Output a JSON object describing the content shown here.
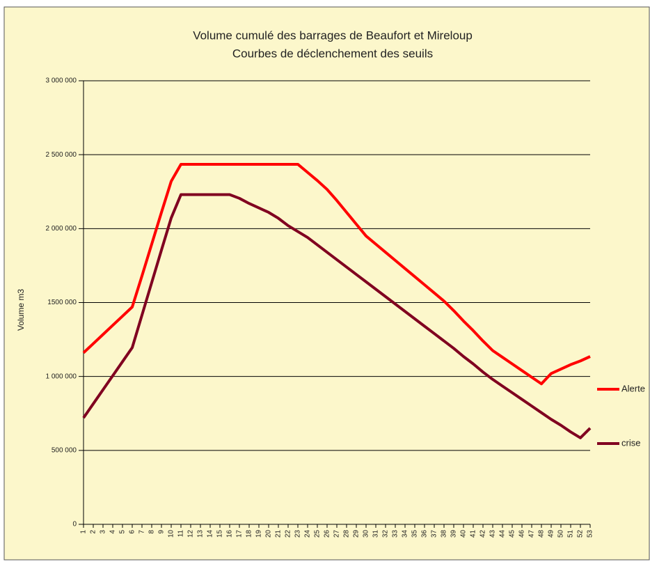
{
  "chart_data": {
    "type": "line",
    "title": "Volume cumulé des barrages de Beaufort et Mireloup",
    "subtitle": "Courbes de déclenchement des seuils",
    "y_label": "Volume m3",
    "categories": [
      1,
      2,
      3,
      4,
      5,
      6,
      7,
      8,
      9,
      10,
      11,
      12,
      13,
      14,
      15,
      16,
      17,
      18,
      19,
      20,
      21,
      22,
      23,
      24,
      25,
      26,
      27,
      28,
      29,
      30,
      31,
      32,
      33,
      34,
      35,
      36,
      37,
      38,
      39,
      40,
      41,
      42,
      43,
      44,
      45,
      46,
      47,
      48,
      49,
      50,
      51,
      52,
      53
    ],
    "series": [
      {
        "name": "Alerte",
        "color": "#ff0000",
        "values": [
          1160000,
          1222000,
          1284000,
          1346000,
          1408000,
          1470000,
          1680000,
          1895000,
          2110000,
          2320000,
          2435000,
          2435000,
          2435000,
          2435000,
          2435000,
          2435000,
          2435000,
          2435000,
          2435000,
          2435000,
          2435000,
          2435000,
          2435000,
          2380000,
          2325000,
          2265000,
          2190000,
          2110000,
          2030000,
          1950000,
          1895000,
          1840000,
          1785000,
          1730000,
          1675000,
          1620000,
          1565000,
          1510000,
          1445000,
          1375000,
          1310000,
          1240000,
          1175000,
          1130000,
          1085000,
          1040000,
          995000,
          950000,
          1020000,
          1050000,
          1080000,
          1105000,
          1135000
        ]
      },
      {
        "name": "crise",
        "color": "#800020",
        "values": [
          720000,
          815000,
          910000,
          1005000,
          1100000,
          1195000,
          1415000,
          1635000,
          1855000,
          2072000,
          2230000,
          2230000,
          2230000,
          2230000,
          2230000,
          2230000,
          2205000,
          2170000,
          2140000,
          2110000,
          2070000,
          2020000,
          1980000,
          1940000,
          1890000,
          1840000,
          1790000,
          1740000,
          1690000,
          1640000,
          1590000,
          1540000,
          1490000,
          1440000,
          1390000,
          1340000,
          1290000,
          1240000,
          1190000,
          1135000,
          1085000,
          1030000,
          980000,
          935000,
          890000,
          845000,
          800000,
          755000,
          710000,
          670000,
          625000,
          585000,
          650000
        ]
      }
    ],
    "ylim": [
      0,
      3000000
    ],
    "yticks": [
      0,
      {
        "value": 500000,
        "label": "500 000"
      },
      {
        "value": 1000000,
        "label": "1 000 000"
      },
      {
        "value": 1500000,
        "label": "1500 000"
      },
      {
        "value": 2000000,
        "label": "2 000 000"
      },
      {
        "value": 2500000,
        "label": "2 500 000"
      },
      {
        "value": 3000000,
        "label": "3 000 000"
      }
    ],
    "grid": true,
    "legend": "right"
  }
}
